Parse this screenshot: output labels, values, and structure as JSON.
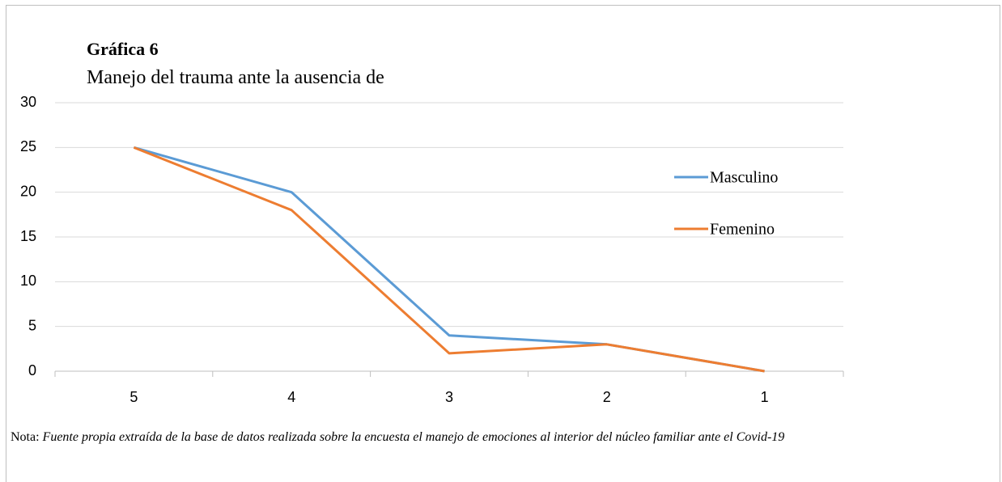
{
  "chart_data": {
    "type": "line",
    "title": "Gráfica 6",
    "subtitle": "Manejo del trauma ante la ausencia de",
    "categories": [
      "5",
      "4",
      "3",
      "2",
      "1"
    ],
    "series": [
      {
        "name": "Masculino",
        "color": "#5b9bd5",
        "values": [
          25,
          20,
          4,
          3,
          0
        ]
      },
      {
        "name": "Femenino",
        "color": "#ed7d31",
        "values": [
          25,
          18,
          2,
          3,
          0
        ]
      }
    ],
    "ylim": [
      0,
      30
    ],
    "yticks": [
      0,
      5,
      10,
      15,
      20,
      25,
      30
    ],
    "grid": true,
    "legend": "right",
    "note_label": "Nota:",
    "note": "Fuente propia extraída de la base de datos realizada sobre la encuesta el manejo de emociones al interior del núcleo familiar ante el Covid-19"
  }
}
